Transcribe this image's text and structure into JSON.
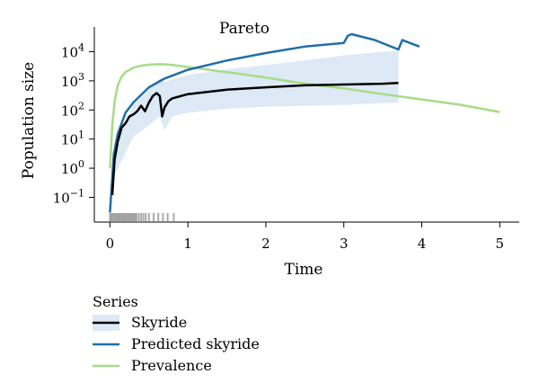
{
  "chart_data": {
    "type": "line",
    "title": "Pareto",
    "xlabel": "Time",
    "ylabel": "Population size",
    "xlim": [
      -0.2,
      5.25
    ],
    "ylim_log10": [
      -1.85,
      4.85
    ],
    "yscale": "log",
    "x_ticks": [
      0,
      1,
      2,
      3,
      4,
      5
    ],
    "y_ticks": [
      {
        "exp": -1,
        "label_base": "10",
        "label_exp": "−1"
      },
      {
        "exp": 0,
        "label_base": "10",
        "label_exp": "0"
      },
      {
        "exp": 1,
        "label_base": "10",
        "label_exp": "1"
      },
      {
        "exp": 2,
        "label_base": "10",
        "label_exp": "2"
      },
      {
        "exp": 3,
        "label_base": "10",
        "label_exp": "3"
      },
      {
        "exp": 4,
        "label_base": "10",
        "label_exp": "4"
      }
    ],
    "grid": false,
    "legend": {
      "title": "Series",
      "placement": "bottom-left",
      "entries": [
        {
          "label": "Skyride",
          "color": "#000000",
          "band_color": "#dde9f5"
        },
        {
          "label": "Predicted skyride",
          "color": "#1f6fa6"
        },
        {
          "label": "Prevalence",
          "color": "#a6dc88"
        }
      ]
    },
    "series": [
      {
        "name": "Skyride",
        "color": "#000000",
        "x": [
          0.03,
          0.06,
          0.1,
          0.15,
          0.2,
          0.25,
          0.3,
          0.35,
          0.4,
          0.45,
          0.5,
          0.55,
          0.6,
          0.64,
          0.67,
          0.7,
          0.75,
          0.8,
          1.0,
          1.5,
          2.0,
          2.5,
          3.0,
          3.5,
          3.7
        ],
        "y": [
          0.12,
          2,
          8,
          25,
          35,
          60,
          70,
          90,
          140,
          90,
          180,
          300,
          380,
          300,
          60,
          120,
          200,
          250,
          350,
          500,
          600,
          700,
          750,
          800,
          850
        ]
      },
      {
        "name": "Skyride band",
        "color": "#dde9f5",
        "x": [
          0.05,
          0.3,
          0.5,
          0.64,
          0.7,
          0.8,
          1.0,
          1.5,
          2.0,
          2.5,
          3.0,
          3.5,
          3.7
        ],
        "lower": [
          0.5,
          12,
          30,
          60,
          20,
          60,
          80,
          110,
          130,
          140,
          150,
          170,
          180
        ],
        "upper": [
          5,
          150,
          500,
          1200,
          900,
          1100,
          1600,
          2500,
          3500,
          5000,
          7500,
          10000,
          11000
        ]
      },
      {
        "name": "Predicted skyride",
        "color": "#1f6fa6",
        "x": [
          0.0,
          0.05,
          0.1,
          0.2,
          0.3,
          0.5,
          0.7,
          1.0,
          1.5,
          2.0,
          2.5,
          3.0,
          3.05,
          3.1,
          3.4,
          3.7,
          3.75,
          3.97
        ],
        "y": [
          0.03,
          3,
          15,
          80,
          180,
          600,
          1200,
          2400,
          5000,
          9000,
          15000,
          20000,
          35000,
          40000,
          25000,
          12000,
          25000,
          15000
        ]
      },
      {
        "name": "Prevalence",
        "color": "#a6dc88",
        "x": [
          0.0,
          0.03,
          0.06,
          0.1,
          0.15,
          0.2,
          0.3,
          0.4,
          0.5,
          0.6,
          0.7,
          0.8,
          1.0,
          1.5,
          2.0,
          2.5,
          3.0,
          3.5,
          4.0,
          4.5,
          5.0
        ],
        "y": [
          1,
          30,
          200,
          700,
          1400,
          2000,
          2800,
          3300,
          3600,
          3700,
          3700,
          3500,
          3000,
          2000,
          1300,
          800,
          550,
          350,
          230,
          150,
          85
        ]
      }
    ],
    "rug_x": [
      0.0,
      0.02,
      0.04,
      0.06,
      0.08,
      0.1,
      0.12,
      0.14,
      0.16,
      0.18,
      0.2,
      0.22,
      0.24,
      0.26,
      0.28,
      0.3,
      0.32,
      0.34,
      0.37,
      0.4,
      0.43,
      0.46,
      0.5,
      0.56,
      0.62,
      0.68,
      0.74,
      0.82
    ]
  }
}
